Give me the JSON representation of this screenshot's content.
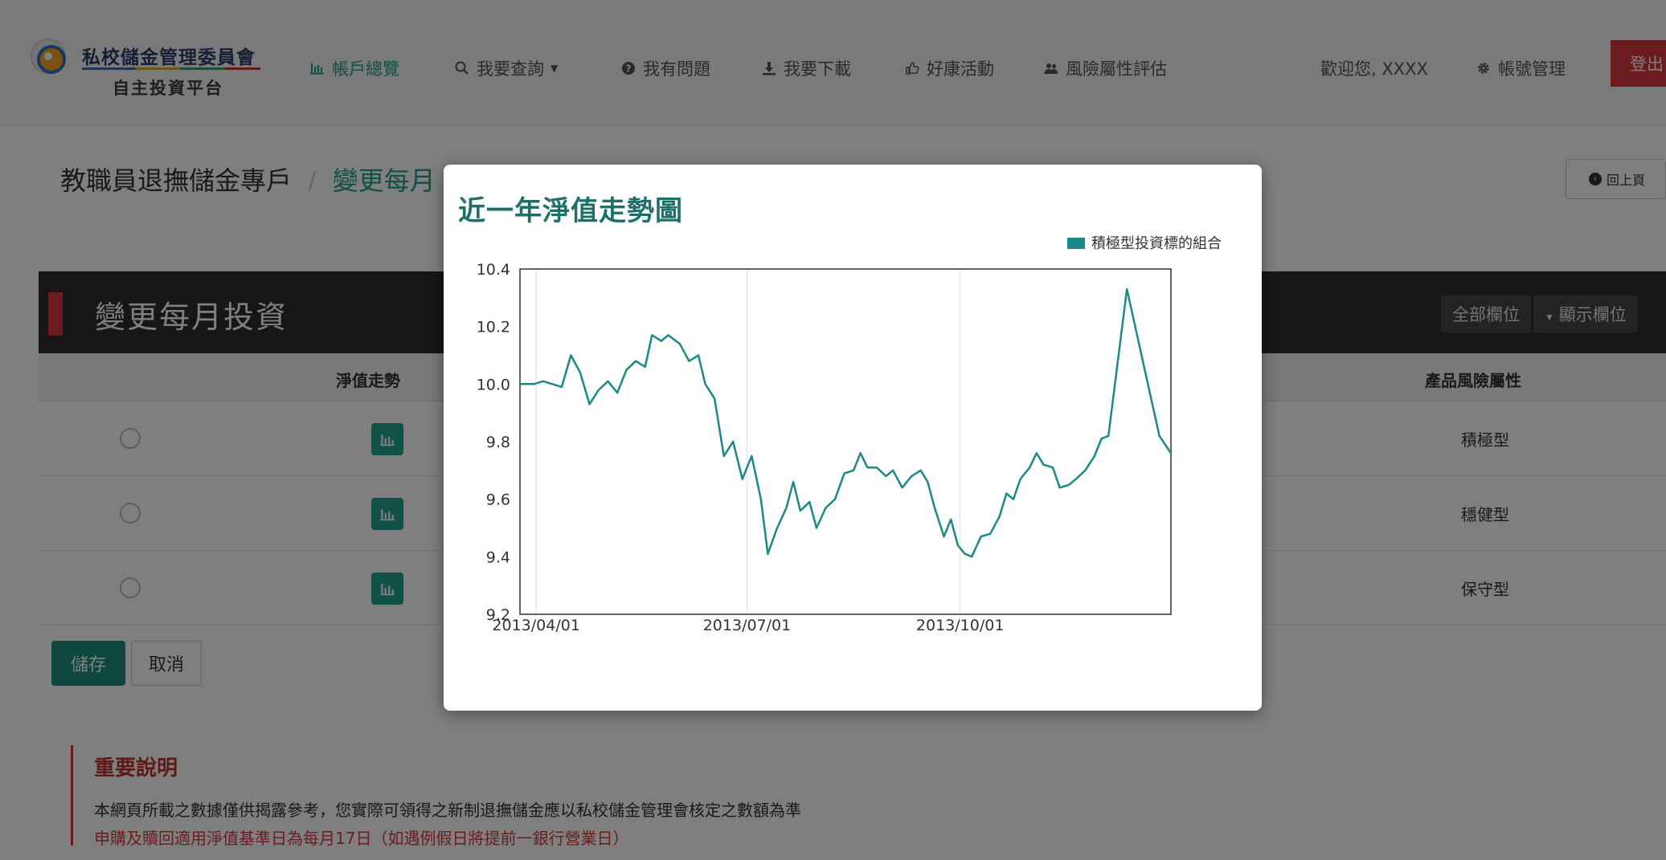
{
  "brand": {
    "title": "私校儲金管理委員會",
    "subtitle": "自主投資平台"
  },
  "nav": {
    "account": "帳戶總覽",
    "query": "我要查詢",
    "faq": "我有問題",
    "download": "我要下載",
    "events": "好康活動",
    "risk": "風險屬性評估",
    "welcome": "歡迎您, XXXX",
    "manage": "帳號管理",
    "logout": "登出"
  },
  "breadcrumb": {
    "home": "教職員退撫儲金專戶",
    "separator": "/",
    "current": "變更每月"
  },
  "back_label": "回上頁",
  "panel": {
    "title": "變更每月投資",
    "all_columns": "全部欄位",
    "show_columns": "顯示欄位"
  },
  "table": {
    "headers": {
      "nav_trend": "淨值走勢",
      "risk": "產品風險屬性"
    },
    "rows": [
      {
        "risk": "積極型"
      },
      {
        "risk": "穩健型"
      },
      {
        "risk": "保守型"
      }
    ]
  },
  "buttons": {
    "save": "儲存",
    "cancel": "取消"
  },
  "notice": {
    "title": "重要說明",
    "line1": "本網頁所載之數據僅供揭露參考，您實際可領得之新制退撫儲金應以私校儲金管理會核定之數額為準",
    "line2": "申購及贖回適用淨值基準日為每月17日（如遇例假日將提前一銀行營業日）"
  },
  "modal": {
    "title": "近一年淨值走勢圖"
  },
  "colors": {
    "accent": "#1f9f8c",
    "series": "#1a8a86",
    "danger": "#d9363e",
    "header_dark": "#2c2c2c"
  },
  "chart_data": {
    "type": "line",
    "title": "近一年淨值走勢圖",
    "xlabel": "",
    "ylabel": "",
    "legend_position": "top-right",
    "grid": true,
    "ylim": [
      9.2,
      10.4
    ],
    "xlim": [
      "2013-03-25",
      "2013-12-31"
    ],
    "x_tick_labels": [
      "2013/04/01",
      "2013/07/01",
      "2013/10/01"
    ],
    "x_ticks": [
      "2013-04-01",
      "2013-07-01",
      "2013-10-01"
    ],
    "y_ticks": [
      9.2,
      9.4,
      9.6,
      9.8,
      10.0,
      10.2,
      10.4
    ],
    "series": [
      {
        "name": "積極型投資標的組合",
        "color": "#1a8a86",
        "points": [
          [
            "2013-03-25",
            10.0
          ],
          [
            "2013-03-31",
            10.0
          ],
          [
            "2013-04-04",
            10.01
          ],
          [
            "2013-04-08",
            10.0
          ],
          [
            "2013-04-12",
            9.99
          ],
          [
            "2013-04-16",
            10.1
          ],
          [
            "2013-04-20",
            10.04
          ],
          [
            "2013-04-24",
            9.93
          ],
          [
            "2013-04-28",
            9.98
          ],
          [
            "2013-05-02",
            10.01
          ],
          [
            "2013-05-06",
            9.97
          ],
          [
            "2013-05-10",
            10.05
          ],
          [
            "2013-05-14",
            10.08
          ],
          [
            "2013-05-18",
            10.06
          ],
          [
            "2013-05-21",
            10.17
          ],
          [
            "2013-05-25",
            10.15
          ],
          [
            "2013-05-28",
            10.17
          ],
          [
            "2013-06-02",
            10.14
          ],
          [
            "2013-06-06",
            10.08
          ],
          [
            "2013-06-10",
            10.1
          ],
          [
            "2013-06-13",
            10.0
          ],
          [
            "2013-06-17",
            9.95
          ],
          [
            "2013-06-21",
            9.75
          ],
          [
            "2013-06-25",
            9.8
          ],
          [
            "2013-06-29",
            9.67
          ],
          [
            "2013-07-03",
            9.75
          ],
          [
            "2013-07-07",
            9.6
          ],
          [
            "2013-07-10",
            9.41
          ],
          [
            "2013-07-14",
            9.5
          ],
          [
            "2013-07-18",
            9.57
          ],
          [
            "2013-07-21",
            9.66
          ],
          [
            "2013-07-24",
            9.56
          ],
          [
            "2013-07-28",
            9.59
          ],
          [
            "2013-07-31",
            9.5
          ],
          [
            "2013-08-04",
            9.57
          ],
          [
            "2013-08-08",
            9.6
          ],
          [
            "2013-08-12",
            9.69
          ],
          [
            "2013-08-16",
            9.7
          ],
          [
            "2013-08-19",
            9.76
          ],
          [
            "2013-08-22",
            9.71
          ],
          [
            "2013-08-26",
            9.71
          ],
          [
            "2013-08-30",
            9.68
          ],
          [
            "2013-09-02",
            9.7
          ],
          [
            "2013-09-06",
            9.64
          ],
          [
            "2013-09-10",
            9.68
          ],
          [
            "2013-09-14",
            9.7
          ],
          [
            "2013-09-17",
            9.66
          ],
          [
            "2013-09-20",
            9.57
          ],
          [
            "2013-09-24",
            9.47
          ],
          [
            "2013-09-27",
            9.53
          ],
          [
            "2013-09-30",
            9.44
          ],
          [
            "2013-10-03",
            9.41
          ],
          [
            "2013-10-06",
            9.4
          ],
          [
            "2013-10-10",
            9.47
          ],
          [
            "2013-10-14",
            9.48
          ],
          [
            "2013-10-18",
            9.54
          ],
          [
            "2013-10-21",
            9.62
          ],
          [
            "2013-10-24",
            9.6
          ],
          [
            "2013-10-27",
            9.67
          ],
          [
            "2013-10-31",
            9.71
          ],
          [
            "2013-11-03",
            9.76
          ],
          [
            "2013-11-06",
            9.72
          ],
          [
            "2013-11-10",
            9.71
          ],
          [
            "2013-11-13",
            9.64
          ],
          [
            "2013-11-17",
            9.65
          ],
          [
            "2013-11-20",
            9.67
          ],
          [
            "2013-11-24",
            9.7
          ],
          [
            "2013-11-28",
            9.75
          ],
          [
            "2013-12-01",
            9.81
          ],
          [
            "2013-12-04",
            9.82
          ],
          [
            "2013-12-12",
            10.33
          ],
          [
            "2013-12-26",
            9.82
          ],
          [
            "2013-12-31",
            9.76
          ]
        ]
      }
    ]
  }
}
